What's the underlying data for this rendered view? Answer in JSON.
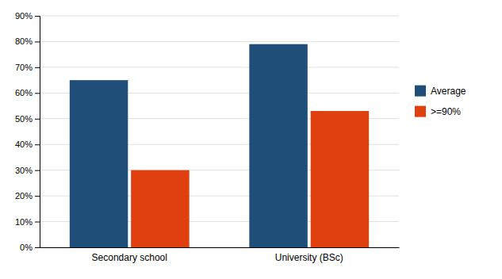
{
  "chart_data": {
    "type": "bar",
    "categories": [
      "Secondary school",
      "University (BSc)"
    ],
    "series": [
      {
        "name": "Average",
        "values": [
          0.65,
          0.79
        ],
        "color": "#1F4E79"
      },
      {
        "name": ">=90%",
        "values": [
          0.3,
          0.53
        ],
        "color": "#E04010"
      }
    ],
    "ylim": [
      0,
      0.9
    ],
    "yticks": [
      {
        "value": 0.0,
        "label": "0%"
      },
      {
        "value": 0.1,
        "label": "10%"
      },
      {
        "value": 0.2,
        "label": "20%"
      },
      {
        "value": 0.3,
        "label": "30%"
      },
      {
        "value": 0.4,
        "label": "40%"
      },
      {
        "value": 0.5,
        "label": "50%"
      },
      {
        "value": 0.6,
        "label": "60%"
      },
      {
        "value": 0.7,
        "label": "70%"
      },
      {
        "value": 0.8,
        "label": "80%"
      },
      {
        "value": 0.9,
        "label": "90%"
      }
    ],
    "grid": true,
    "legend": "right"
  }
}
